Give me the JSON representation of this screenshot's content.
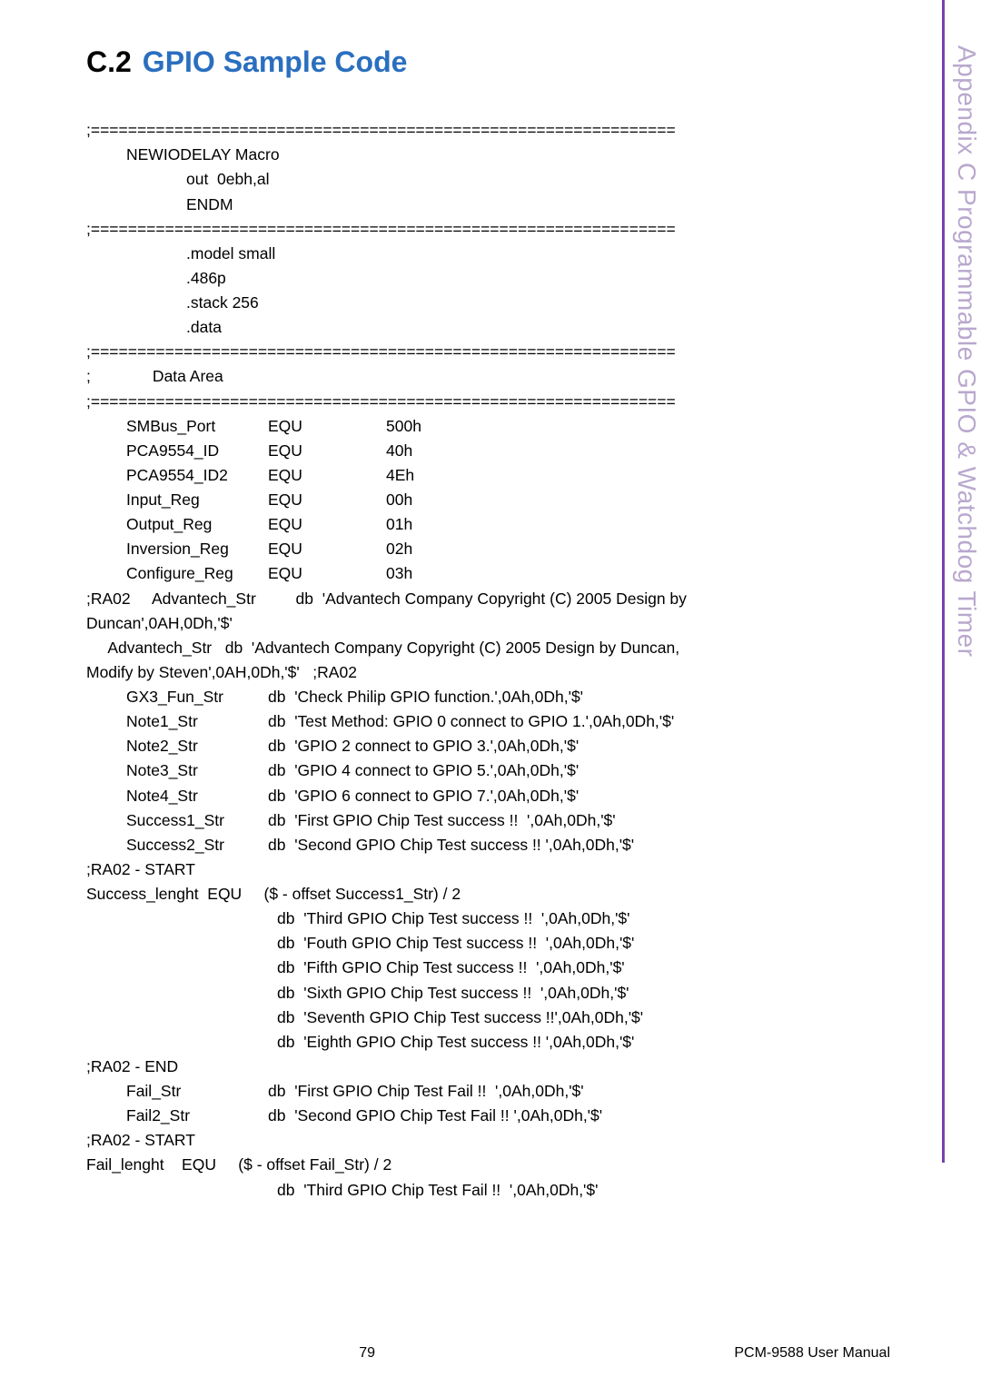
{
  "section_number": "C.2",
  "section_title": "GPIO Sample Code",
  "side_text": "Appendix C  Programmable GPIO & Watchdog Timer",
  "colors": {
    "heading_blue": "#2a6fbf",
    "side_purple": "#7b3fb3",
    "side_text": "#b9a8ce"
  },
  "sep": ";===============================================================",
  "macro": {
    "l1": "NEWIODELAY Macro",
    "l2": "out  0ebh,al",
    "l3": "ENDM"
  },
  "model": {
    "l1": ".model small",
    "l2": ".486p",
    "l3": ".stack 256",
    "l4": ".data"
  },
  "data_area": ";              Data Area",
  "equ": [
    {
      "n": "SMBus_Port",
      "k": "EQU",
      "v": "500h"
    },
    {
      "n": "PCA9554_ID",
      "k": "EQU",
      "v": "40h"
    },
    {
      "n": "PCA9554_ID2",
      "k": "EQU",
      "v": "4Eh"
    },
    {
      "n": "Input_Reg",
      "k": "EQU",
      "v": "00h"
    },
    {
      "n": "Output_Reg",
      "k": "EQU",
      "v": "01h"
    },
    {
      "n": "Inversion_Reg",
      "k": "EQU",
      "v": "02h"
    },
    {
      "n": "Configure_Reg",
      "k": "EQU",
      "v": "03h"
    }
  ],
  "adv1a": ";RA02     Advantech_Str         db  'Advantech Company Copyright (C) 2005 Design by",
  "adv1b": "Duncan',0AH,0Dh,'$'",
  "adv2a": "     Advantech_Str   db  'Advantech Company Copyright (C) 2005 Design by Duncan,",
  "adv2b": "Modify by Steven',0AH,0Dh,'$'   ;RA02",
  "strs": [
    {
      "n": "GX3_Fun_Str",
      "v": "db  'Check Philip GPIO function.',0Ah,0Dh,'$'"
    },
    {
      "n": "Note1_Str",
      "v": "db  'Test Method: GPIO 0 connect to GPIO 1.',0Ah,0Dh,'$'"
    },
    {
      "n": "Note2_Str",
      "v": "db  'GPIO 2 connect to GPIO 3.',0Ah,0Dh,'$'"
    },
    {
      "n": "Note3_Str",
      "v": "db  'GPIO 4 connect to GPIO 5.',0Ah,0Dh,'$'"
    },
    {
      "n": "Note4_Str",
      "v": "db  'GPIO 6 connect to GPIO 7.',0Ah,0Dh,'$'"
    },
    {
      "n": "Success1_Str",
      "v": "db  'First GPIO Chip Test success !!  ',0Ah,0Dh,'$'"
    },
    {
      "n": "Success2_Str",
      "v": "db  'Second GPIO Chip Test success !! ',0Ah,0Dh,'$'"
    }
  ],
  "ra02start": ";RA02 - START",
  "suclen": "Success_lenght  EQU     ($ - offset Success1_Str) / 2",
  "dblist1": [
    "db  'Third GPIO Chip Test success !!  ',0Ah,0Dh,'$'",
    "db  'Fouth GPIO Chip Test success !!  ',0Ah,0Dh,'$'",
    "db  'Fifth GPIO Chip Test success !!  ',0Ah,0Dh,'$'",
    "db  'Sixth GPIO Chip Test success !!  ',0Ah,0Dh,'$'",
    "db  'Seventh GPIO Chip Test success !!',0Ah,0Dh,'$'",
    "db  'Eighth GPIO Chip Test success !! ',0Ah,0Dh,'$'"
  ],
  "ra02end": ";RA02 - END",
  "fails": [
    {
      "n": "Fail_Str",
      "v": "db  'First GPIO Chip Test Fail !!  ',0Ah,0Dh,'$'"
    },
    {
      "n": "Fail2_Str",
      "v": "db  'Second GPIO Chip Test Fail !! ',0Ah,0Dh,'$'"
    }
  ],
  "faillen": "Fail_lenght    EQU     ($ - offset Fail_Str) / 2",
  "dblist2": "db  'Third GPIO Chip Test Fail !!  ',0Ah,0Dh,'$'",
  "footer": {
    "page": "79",
    "manual": "PCM-9588 User Manual"
  }
}
